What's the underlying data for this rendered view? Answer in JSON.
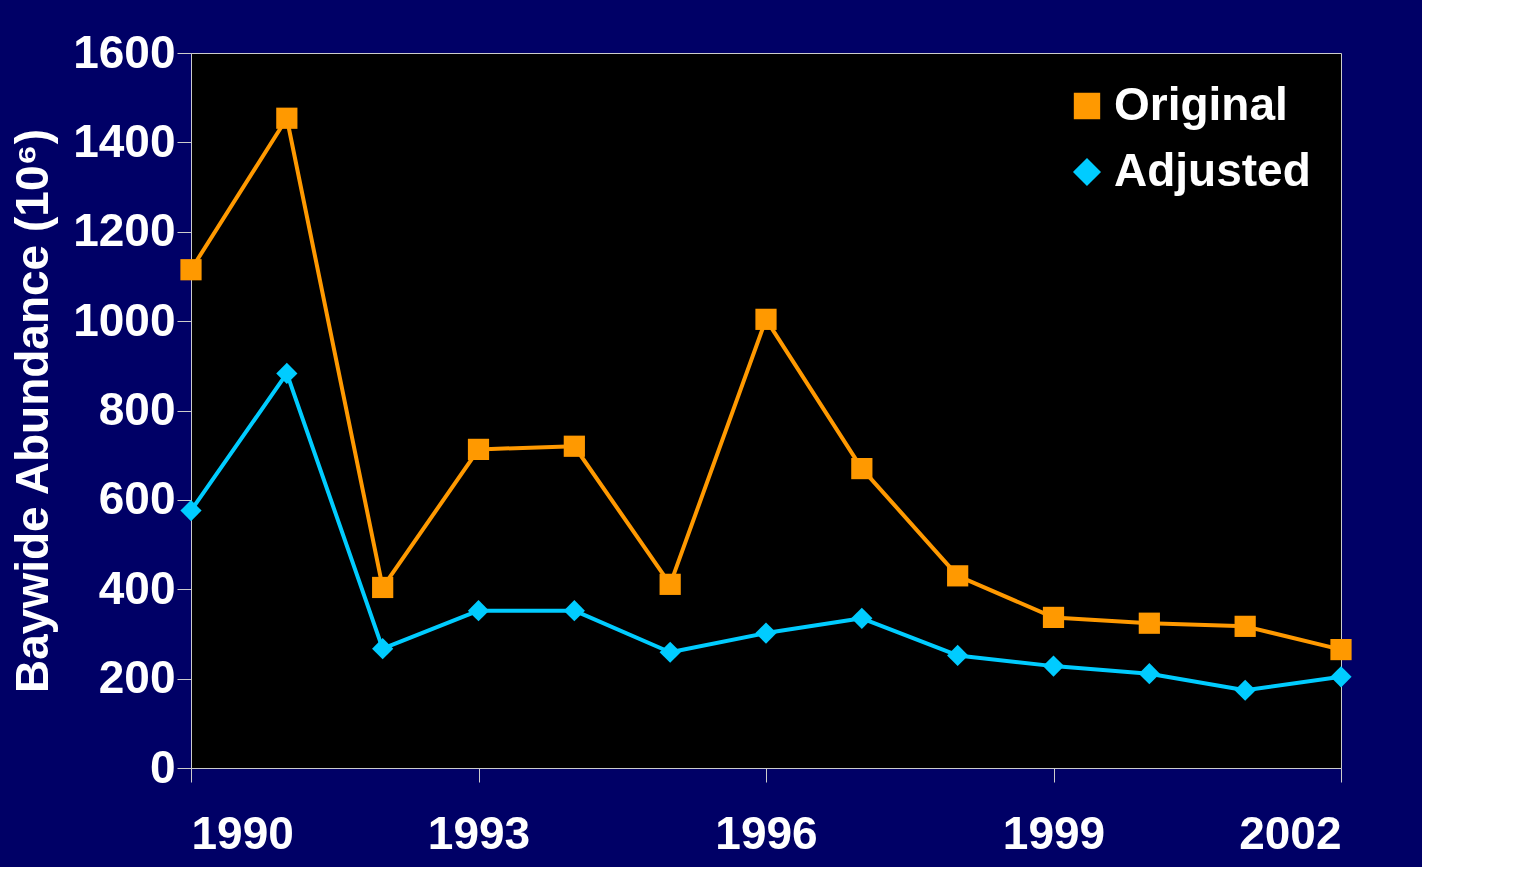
{
  "chart_data": {
    "type": "line",
    "ylabel": "Baywide Abundance (10⁶)",
    "x": [
      1990,
      1991,
      1992,
      1993,
      1994,
      1995,
      1996,
      1997,
      1998,
      1999,
      2000,
      2001,
      2002
    ],
    "series": [
      {
        "name": "Original",
        "color": "#ff9900",
        "marker": "square",
        "values": [
          1115,
          1454,
          404,
          713,
          720,
          411,
          1004,
          670,
          430,
          337,
          324,
          317,
          265
        ]
      },
      {
        "name": "Adjusted",
        "color": "#00ccff",
        "marker": "diamond",
        "values": [
          576,
          883,
          267,
          352,
          352,
          259,
          302,
          335,
          252,
          228,
          211,
          174,
          204
        ]
      }
    ],
    "xlim": [
      1990,
      2002
    ],
    "xticks": [
      1990,
      1993,
      1996,
      1999,
      2002
    ],
    "ylim": [
      0,
      1600
    ],
    "yticks": [
      0,
      200,
      400,
      600,
      800,
      1000,
      1200,
      1400,
      1600
    ],
    "grid": false,
    "legend": "top right",
    "line_style": "solid"
  }
}
